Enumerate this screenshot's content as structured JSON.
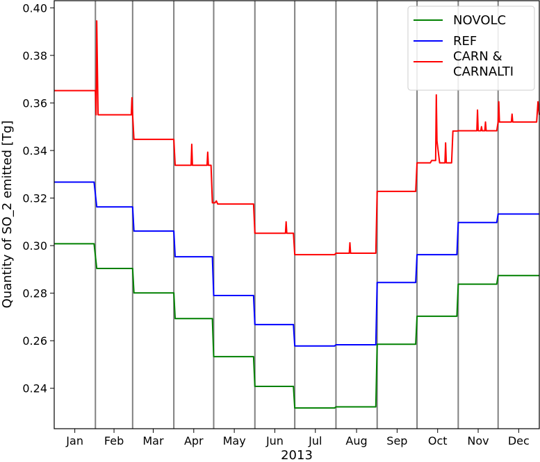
{
  "chart_data": {
    "type": "line",
    "xlabel": "2013",
    "ylabel": "Quantity of SO_2 emitted [Tg]",
    "xlim": [
      0,
      365
    ],
    "ylim": [
      0.223,
      0.403
    ],
    "y_ticks": [
      0.24,
      0.26,
      0.28,
      0.3,
      0.32,
      0.34,
      0.36,
      0.38,
      0.4
    ],
    "y_tick_labels": [
      "0.24",
      "0.26",
      "0.28",
      "0.30",
      "0.32",
      "0.34",
      "0.36",
      "0.38",
      "0.40"
    ],
    "month_boundaries": [
      0,
      31,
      59,
      90,
      120,
      151,
      181,
      212,
      243,
      273,
      304,
      334,
      365
    ],
    "months": [
      "Jan",
      "Feb",
      "Mar",
      "Apr",
      "May",
      "Jun",
      "Jul",
      "Aug",
      "Sep",
      "Oct",
      "Nov",
      "Dec"
    ],
    "grid": false,
    "legend_position": "top-right",
    "series": [
      {
        "name": "NOVOLC",
        "color": "#008000",
        "points": [
          [
            0,
            0.3008
          ],
          [
            30,
            0.3008
          ],
          [
            32,
            0.2904
          ],
          [
            59,
            0.2904
          ],
          [
            60,
            0.2801
          ],
          [
            90,
            0.2801
          ],
          [
            91,
            0.2693
          ],
          [
            119,
            0.2693
          ],
          [
            120,
            0.2533
          ],
          [
            150,
            0.2533
          ],
          [
            151,
            0.2408
          ],
          [
            180,
            0.2408
          ],
          [
            181,
            0.2317
          ],
          [
            211,
            0.2317
          ],
          [
            212,
            0.2322
          ],
          [
            242,
            0.2322
          ],
          [
            243,
            0.2585
          ],
          [
            272,
            0.2585
          ],
          [
            273,
            0.2703
          ],
          [
            303,
            0.2703
          ],
          [
            304,
            0.2838
          ],
          [
            333,
            0.2838
          ],
          [
            334,
            0.2874
          ],
          [
            365,
            0.2874
          ]
        ]
      },
      {
        "name": "REF",
        "color": "#0000ff",
        "points": [
          [
            0,
            0.3267
          ],
          [
            30,
            0.3267
          ],
          [
            32,
            0.3163
          ],
          [
            59,
            0.3163
          ],
          [
            60,
            0.3061
          ],
          [
            90,
            0.3061
          ],
          [
            91,
            0.2953
          ],
          [
            119,
            0.2953
          ],
          [
            120,
            0.279
          ],
          [
            150,
            0.279
          ],
          [
            151,
            0.2668
          ],
          [
            180,
            0.2668
          ],
          [
            181,
            0.2578
          ],
          [
            211,
            0.2578
          ],
          [
            212,
            0.2583
          ],
          [
            242,
            0.2583
          ],
          [
            243,
            0.2845
          ],
          [
            272,
            0.2845
          ],
          [
            273,
            0.2962
          ],
          [
            303,
            0.2962
          ],
          [
            304,
            0.3097
          ],
          [
            333,
            0.3097
          ],
          [
            334,
            0.3133
          ],
          [
            365,
            0.3133
          ]
        ]
      },
      {
        "name": "CARN & CARNALTI",
        "color": "#ff0000",
        "points": [
          [
            0,
            0.3652
          ],
          [
            30,
            0.3652
          ],
          [
            31,
            0.3652
          ],
          [
            31.5,
            0.355
          ],
          [
            32,
            0.3945
          ],
          [
            33,
            0.355
          ],
          [
            58,
            0.355
          ],
          [
            58.5,
            0.3622
          ],
          [
            59,
            0.355
          ],
          [
            60,
            0.3447
          ],
          [
            90,
            0.3447
          ],
          [
            91,
            0.3338
          ],
          [
            103,
            0.3338
          ],
          [
            103.5,
            0.3426
          ],
          [
            104,
            0.3338
          ],
          [
            115,
            0.3338
          ],
          [
            115.5,
            0.3393
          ],
          [
            116,
            0.3338
          ],
          [
            117,
            0.3338
          ],
          [
            118,
            0.3338
          ],
          [
            119,
            0.318
          ],
          [
            120,
            0.318
          ],
          [
            121,
            0.318
          ],
          [
            122,
            0.3188
          ],
          [
            123,
            0.3175
          ],
          [
            150,
            0.3175
          ],
          [
            151,
            0.3052
          ],
          [
            174,
            0.3052
          ],
          [
            174.5,
            0.31
          ],
          [
            175,
            0.3052
          ],
          [
            180,
            0.3052
          ],
          [
            181,
            0.2962
          ],
          [
            211,
            0.2962
          ],
          [
            212,
            0.2968
          ],
          [
            222,
            0.2968
          ],
          [
            222.5,
            0.3012
          ],
          [
            223,
            0.2968
          ],
          [
            242,
            0.2968
          ],
          [
            243,
            0.3228
          ],
          [
            272,
            0.3228
          ],
          [
            273,
            0.3348
          ],
          [
            283,
            0.3348
          ],
          [
            284,
            0.3358
          ],
          [
            287,
            0.3358
          ],
          [
            287.5,
            0.3634
          ],
          [
            288,
            0.344
          ],
          [
            290,
            0.3348
          ],
          [
            294,
            0.3348
          ],
          [
            294.5,
            0.3432
          ],
          [
            295,
            0.3348
          ],
          [
            299,
            0.3348
          ],
          [
            300,
            0.3482
          ],
          [
            303,
            0.3482
          ],
          [
            304,
            0.3483
          ],
          [
            318,
            0.3483
          ],
          [
            318.5,
            0.357
          ],
          [
            319,
            0.3483
          ],
          [
            321,
            0.3483
          ],
          [
            321.5,
            0.35
          ],
          [
            322,
            0.3483
          ],
          [
            324,
            0.3483
          ],
          [
            324.5,
            0.352
          ],
          [
            325,
            0.3483
          ],
          [
            333,
            0.3483
          ],
          [
            334,
            0.352
          ],
          [
            334.5,
            0.3605
          ],
          [
            335,
            0.352
          ],
          [
            344,
            0.352
          ],
          [
            344.5,
            0.3553
          ],
          [
            345,
            0.352
          ],
          [
            363,
            0.352
          ],
          [
            364,
            0.3605
          ],
          [
            365,
            0.355
          ]
        ]
      }
    ]
  }
}
